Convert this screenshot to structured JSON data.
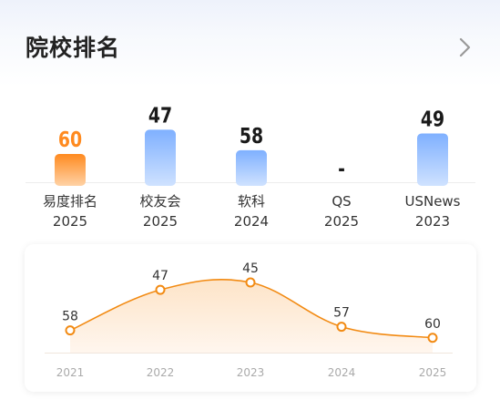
{
  "header": {
    "title": "院校排名",
    "chevron_icon": "chevron-right-icon"
  },
  "colors": {
    "active_bar_top": "#ff8a1f",
    "active_bar_bottom": "#ffd2a6",
    "bar_top": "#7fb0ff",
    "bar_bottom": "#cfe2ff",
    "active_value": "#ff8a1f",
    "value": "#1a1a1a",
    "line": "#f28a12",
    "area_top": "#fde4c8",
    "area_bottom": "#fff6ee"
  },
  "rankings": [
    {
      "source": "易度排名",
      "year": "2025",
      "value": "60",
      "rank": 60,
      "active": true
    },
    {
      "source": "校友会",
      "year": "2025",
      "value": "47",
      "rank": 47,
      "active": false
    },
    {
      "source": "软科",
      "year": "2024",
      "value": "58",
      "rank": 58,
      "active": false
    },
    {
      "source": "QS",
      "year": "2025",
      "value": "-",
      "rank": null,
      "active": false
    },
    {
      "source": "USNews",
      "year": "2023",
      "value": "49",
      "rank": 49,
      "active": false
    }
  ],
  "chart_data": {
    "type": "line",
    "x": [
      "2021",
      "2022",
      "2023",
      "2024",
      "2025"
    ],
    "series": [
      {
        "values": [
          58,
          47,
          45,
          57,
          60
        ]
      }
    ],
    "data_labels": [
      "58",
      "47",
      "45",
      "57",
      "60"
    ]
  }
}
